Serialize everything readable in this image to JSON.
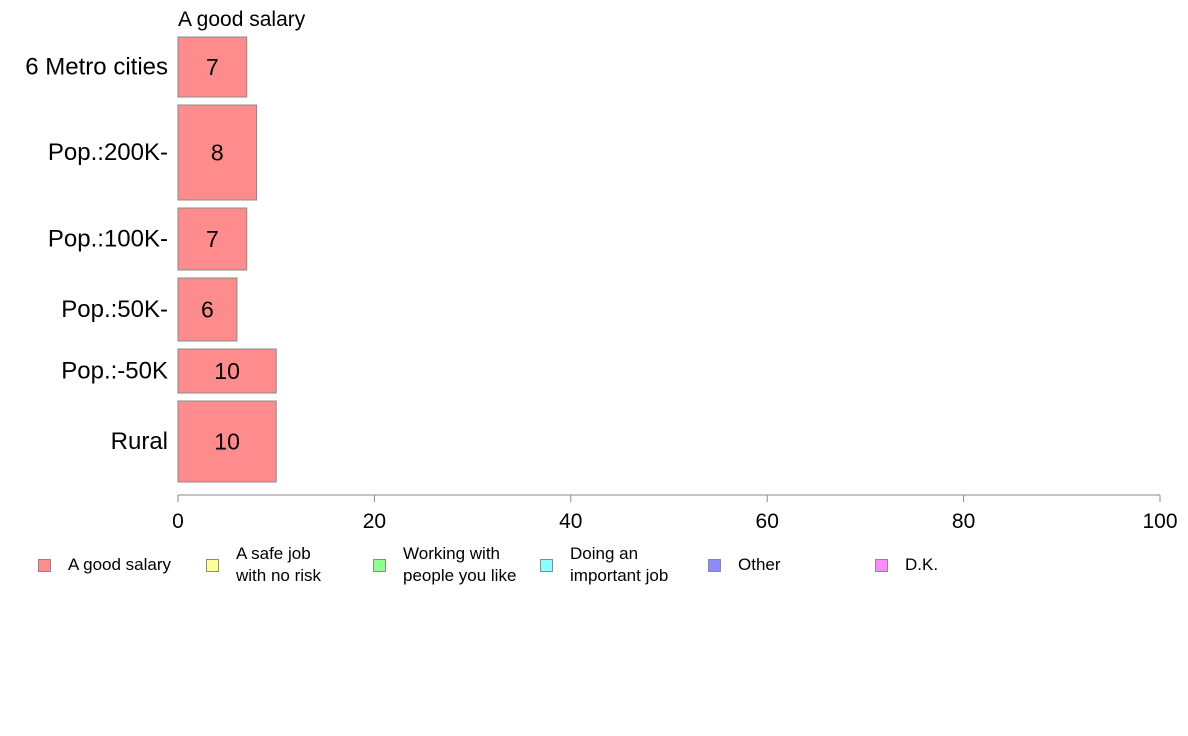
{
  "chart_data": {
    "type": "bar",
    "orientation": "horizontal",
    "title": "A good salary",
    "categories": [
      "6 Metro cities",
      "Pop.:200K-",
      "Pop.:100K-",
      "Pop.:50K-",
      "Pop.:-50K",
      "Rural"
    ],
    "series": [
      {
        "name": "A good salary",
        "values": [
          7,
          8,
          7,
          6,
          10,
          10
        ]
      }
    ],
    "data_labels": [
      "7",
      "8",
      "7",
      "6",
      "10",
      "10"
    ],
    "xlim": [
      0,
      100
    ],
    "xticks": [
      0,
      20,
      40,
      60,
      80,
      100
    ],
    "grid": false,
    "legend_position": "bottom",
    "legend": [
      {
        "label": "A good salary",
        "color": "#ff8c8c"
      },
      {
        "label": "A safe job\nwith no risk",
        "color": "#ffff99"
      },
      {
        "label": "Working with\npeople you like",
        "color": "#8cff8c"
      },
      {
        "label": "Doing an\nimportant job",
        "color": "#8cffff"
      },
      {
        "label": "Other",
        "color": "#8c8cff"
      },
      {
        "label": "D.K.",
        "color": "#ff8cff"
      }
    ],
    "colors": {
      "bar_fill": "#ff8c8c",
      "bar_stroke": "#8a8a8a",
      "axis": "#8a8a8a"
    }
  }
}
